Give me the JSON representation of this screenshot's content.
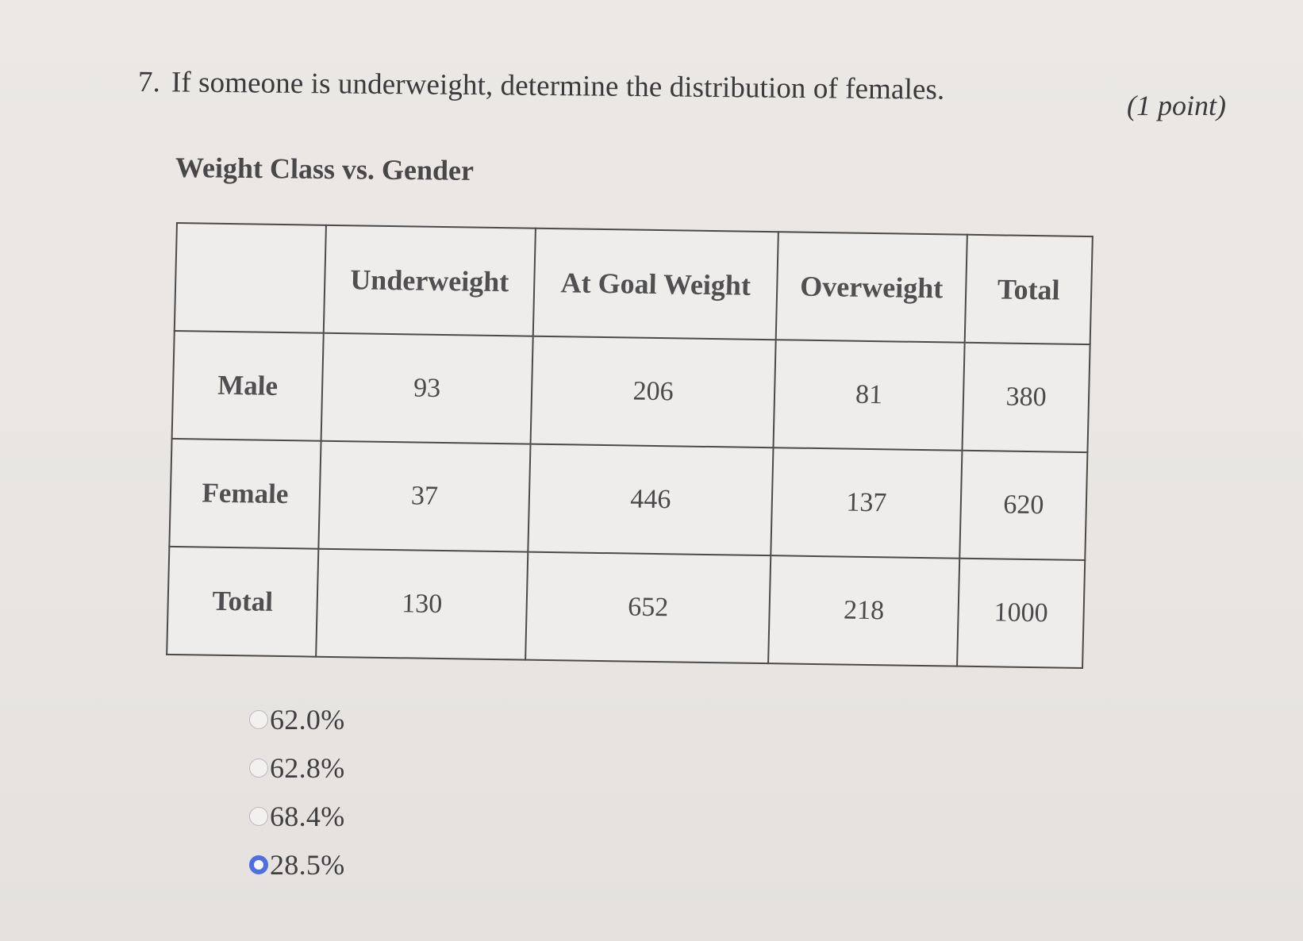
{
  "question": {
    "number": "7.",
    "text": "If someone is underweight, determine the distribution of females.",
    "points": "(1 point)"
  },
  "table": {
    "title": "Weight Class vs. Gender",
    "headers": [
      "",
      "Underweight",
      "At Goal Weight",
      "Overweight",
      "Total"
    ],
    "rows": [
      {
        "label": "Male",
        "cells": [
          "93",
          "206",
          "81",
          "380"
        ]
      },
      {
        "label": "Female",
        "cells": [
          "37",
          "446",
          "137",
          "620"
        ]
      },
      {
        "label": "Total",
        "cells": [
          "130",
          "652",
          "218",
          "1000"
        ]
      }
    ]
  },
  "options": [
    {
      "label": "62.0%",
      "selected": false
    },
    {
      "label": "62.8%",
      "selected": false
    },
    {
      "label": "68.4%",
      "selected": false
    },
    {
      "label": "28.5%",
      "selected": true
    }
  ],
  "colors": {
    "background": "#e9e6e3",
    "text": "#3c3c3e",
    "border": "#4a4a4a",
    "radio_selected": "#4f6fe0"
  }
}
